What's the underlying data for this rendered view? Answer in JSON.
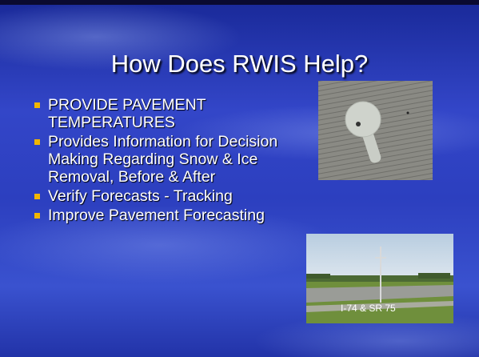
{
  "slide": {
    "title": "How Does RWIS Help?",
    "bullets": [
      "PROVIDE PAVEMENT TEMPERATURES",
      "Provides Information for Decision Making Regarding Snow & Ice Removal, Before & After",
      "Verify Forecasts - Tracking",
      "Improve Pavement Forecasting"
    ],
    "photo_caption": "I-74 & SR 75"
  }
}
